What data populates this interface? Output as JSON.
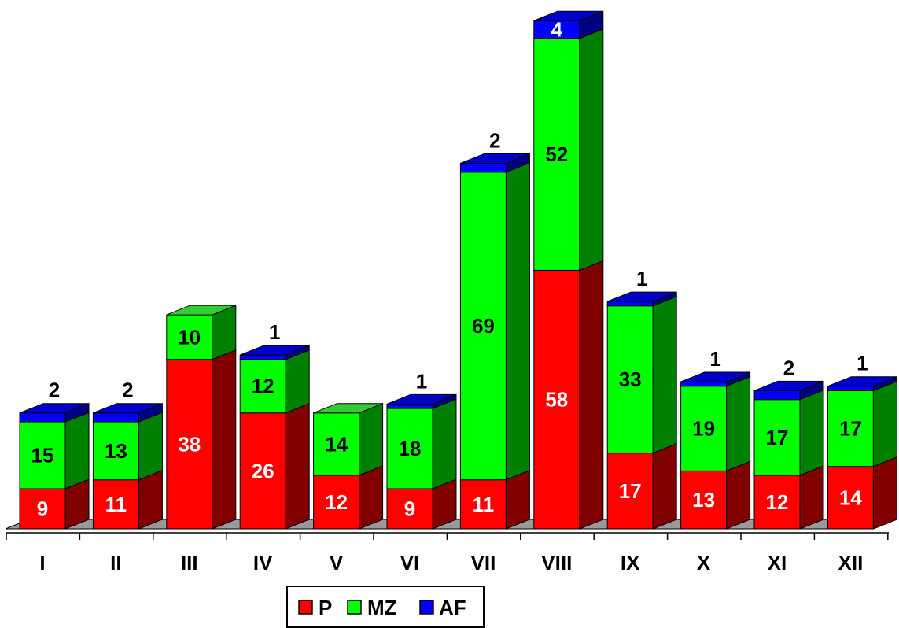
{
  "colors": {
    "P": {
      "front": "#ff0000",
      "side": "#800000",
      "top": "#ff3333",
      "label": "#ffffff"
    },
    "MZ": {
      "front": "#00ff00",
      "side": "#008000",
      "top": "#33cc33",
      "label": "#000000"
    },
    "AF": {
      "front": "#0000ff",
      "side": "#000080",
      "top": "#0000cc",
      "label": "#ffffff"
    },
    "floor": "#999999"
  },
  "chart_data": {
    "type": "bar",
    "stacked": true,
    "three_d": true,
    "categories": [
      "I",
      "II",
      "III",
      "IV",
      "V",
      "VI",
      "VII",
      "VIII",
      "IX",
      "X",
      "XI",
      "XII"
    ],
    "series": [
      {
        "name": "P",
        "values": [
          9,
          11,
          38,
          26,
          12,
          9,
          11,
          58,
          17,
          13,
          12,
          14
        ]
      },
      {
        "name": "MZ",
        "values": [
          15,
          13,
          10,
          12,
          14,
          18,
          69,
          52,
          33,
          19,
          17,
          17
        ]
      },
      {
        "name": "AF",
        "values": [
          2,
          2,
          0,
          1,
          0,
          1,
          2,
          4,
          1,
          1,
          2,
          1
        ]
      }
    ],
    "legend": {
      "position": "bottom",
      "entries": [
        "P",
        "MZ",
        "AF"
      ]
    },
    "grid": false,
    "title": ""
  }
}
